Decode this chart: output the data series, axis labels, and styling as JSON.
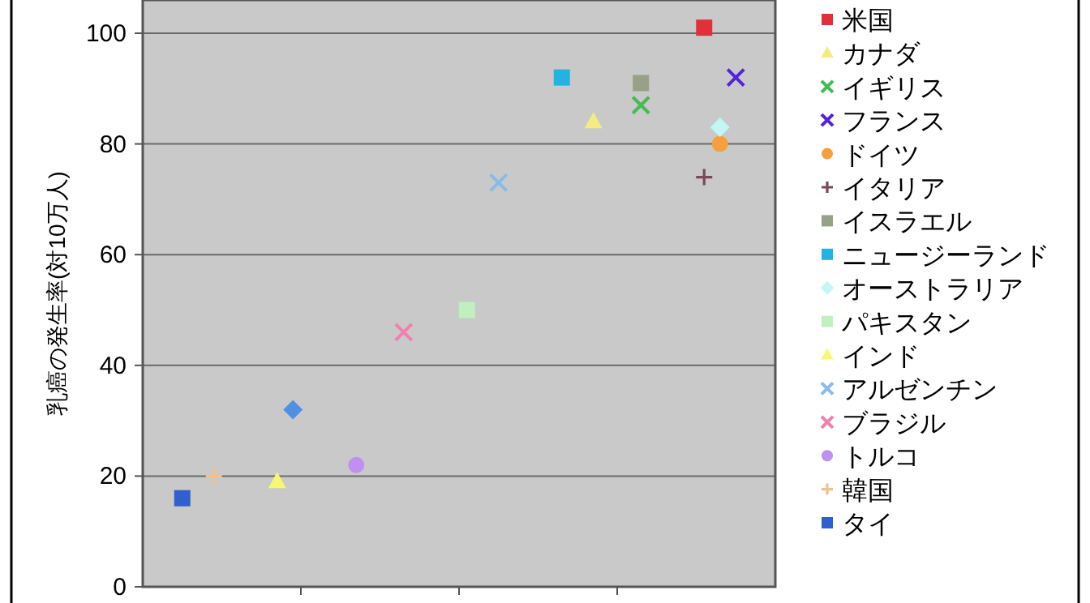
{
  "chart_data": {
    "type": "scatter",
    "ylabel": "乳癌の発生率(対10万人)",
    "ylim": [
      0,
      106
    ],
    "yticks": [
      0,
      20,
      40,
      60,
      80,
      100
    ],
    "grid": "y",
    "legend": "right",
    "tick_labels": "y",
    "categories": [
      null,
      null,
      null,
      null,
      null,
      null,
      null,
      null,
      null,
      null,
      null,
      null,
      null,
      null,
      null,
      null,
      null,
      null,
      null,
      null,
      null,
      null,
      null,
      null,
      null,
      null,
      null,
      null,
      null,
      null,
      null,
      null,
      null,
      null,
      null,
      null,
      null,
      null,
      null,
      null
    ],
    "series": [
      {
        "name": "米国",
        "color": "#e0303a",
        "marker": "square",
        "values": [
          null,
          null,
          null,
          null,
          null,
          null,
          null,
          null,
          null,
          null,
          null,
          null,
          null,
          null,
          null,
          null,
          null,
          null,
          null,
          null,
          null,
          null,
          null,
          null,
          null,
          null,
          null,
          null,
          null,
          null,
          null,
          null,
          null,
          null,
          null,
          101,
          null,
          null,
          null,
          null
        ]
      },
      {
        "name": "カナダ",
        "color": "#f4ec80",
        "marker": "triangle",
        "values": [
          null,
          null,
          null,
          null,
          null,
          null,
          null,
          null,
          null,
          null,
          null,
          null,
          null,
          null,
          null,
          null,
          null,
          null,
          null,
          null,
          null,
          null,
          null,
          null,
          null,
          null,
          null,
          null,
          84,
          null,
          null,
          null,
          null,
          null,
          null,
          null,
          null,
          null,
          null,
          null
        ]
      },
      {
        "name": "イギリス",
        "color": "#44bb55",
        "marker": "cross",
        "values": [
          null,
          null,
          null,
          null,
          null,
          null,
          null,
          null,
          null,
          null,
          null,
          null,
          null,
          null,
          null,
          null,
          null,
          null,
          null,
          null,
          null,
          null,
          null,
          null,
          null,
          null,
          null,
          null,
          null,
          null,
          null,
          87,
          null,
          null,
          null,
          null,
          null,
          null,
          null,
          null
        ]
      },
      {
        "name": "フランス",
        "color": "#5522dd",
        "marker": "cross",
        "values": [
          null,
          null,
          null,
          null,
          null,
          null,
          null,
          null,
          null,
          null,
          null,
          null,
          null,
          null,
          null,
          null,
          null,
          null,
          null,
          null,
          null,
          null,
          null,
          null,
          null,
          null,
          null,
          null,
          null,
          null,
          null,
          null,
          null,
          null,
          null,
          null,
          null,
          92,
          null,
          null
        ]
      },
      {
        "name": "ドイツ",
        "color": "#f5a040",
        "marker": "circle",
        "values": [
          null,
          null,
          null,
          null,
          null,
          null,
          null,
          null,
          null,
          null,
          null,
          null,
          null,
          null,
          null,
          null,
          null,
          null,
          null,
          null,
          null,
          null,
          null,
          null,
          null,
          null,
          null,
          null,
          null,
          null,
          null,
          null,
          null,
          null,
          null,
          null,
          80,
          null,
          null,
          null
        ]
      },
      {
        "name": "イタリア",
        "color": "#7a4a5a",
        "marker": "plus",
        "values": [
          null,
          null,
          null,
          null,
          null,
          null,
          null,
          null,
          null,
          null,
          null,
          null,
          null,
          null,
          null,
          null,
          null,
          null,
          null,
          null,
          null,
          null,
          null,
          null,
          null,
          null,
          null,
          null,
          null,
          null,
          null,
          null,
          null,
          null,
          null,
          74,
          null,
          null,
          null,
          null
        ]
      },
      {
        "name": "イスラエル",
        "color": "#98a088",
        "marker": "square",
        "values": [
          null,
          null,
          null,
          null,
          null,
          null,
          null,
          null,
          null,
          null,
          null,
          null,
          null,
          null,
          null,
          null,
          null,
          null,
          null,
          null,
          null,
          null,
          null,
          null,
          null,
          null,
          null,
          null,
          null,
          null,
          null,
          91,
          null,
          null,
          null,
          null,
          null,
          null,
          null,
          null
        ]
      },
      {
        "name": "ニュージーランド",
        "color": "#22b4e0",
        "marker": "square",
        "values": [
          null,
          null,
          null,
          null,
          null,
          null,
          null,
          null,
          null,
          null,
          null,
          null,
          null,
          null,
          null,
          null,
          null,
          null,
          null,
          null,
          null,
          null,
          null,
          null,
          null,
          null,
          92,
          null,
          null,
          null,
          null,
          null,
          null,
          null,
          null,
          null,
          null,
          null,
          null,
          null
        ]
      },
      {
        "name": "オーストラリア",
        "color": "#c4f6f6",
        "marker": "diamond",
        "values": [
          null,
          null,
          null,
          null,
          null,
          null,
          null,
          null,
          null,
          null,
          null,
          null,
          null,
          null,
          null,
          null,
          null,
          null,
          null,
          null,
          null,
          null,
          null,
          null,
          null,
          null,
          null,
          null,
          null,
          null,
          null,
          null,
          null,
          null,
          null,
          null,
          83,
          null,
          null,
          null
        ]
      },
      {
        "name": "パキスタン",
        "color": "#c0f0c0",
        "marker": "square",
        "values": [
          null,
          null,
          null,
          null,
          null,
          null,
          null,
          null,
          null,
          null,
          null,
          null,
          null,
          null,
          null,
          null,
          null,
          null,
          null,
          null,
          50,
          null,
          null,
          null,
          null,
          null,
          null,
          null,
          null,
          null,
          null,
          null,
          null,
          null,
          null,
          null,
          null,
          null,
          null,
          null
        ]
      },
      {
        "name": "インド",
        "color": "#f8f870",
        "marker": "triangle",
        "values": [
          null,
          null,
          null,
          null,
          null,
          null,
          null,
          null,
          19,
          null,
          null,
          null,
          null,
          null,
          null,
          null,
          null,
          null,
          null,
          null,
          null,
          null,
          null,
          null,
          null,
          null,
          null,
          null,
          null,
          null,
          null,
          null,
          null,
          null,
          null,
          null,
          null,
          null,
          null,
          null
        ]
      },
      {
        "name": "アルゼンチン",
        "color": "#88bce8",
        "marker": "cross",
        "values": [
          null,
          null,
          null,
          null,
          null,
          null,
          null,
          null,
          null,
          null,
          null,
          null,
          null,
          null,
          null,
          null,
          null,
          null,
          null,
          null,
          null,
          null,
          73,
          null,
          null,
          null,
          null,
          null,
          null,
          null,
          null,
          null,
          null,
          null,
          null,
          null,
          null,
          null,
          null,
          null
        ]
      },
      {
        "name": "ブラジル",
        "color": "#f080b0",
        "marker": "cross",
        "values": [
          null,
          null,
          null,
          null,
          null,
          null,
          null,
          null,
          null,
          null,
          null,
          null,
          null,
          null,
          null,
          null,
          46,
          null,
          null,
          null,
          null,
          null,
          null,
          null,
          null,
          null,
          null,
          null,
          null,
          null,
          null,
          null,
          null,
          null,
          null,
          null,
          null,
          null,
          null,
          null
        ]
      },
      {
        "name": "トルコ",
        "color": "#c090f0",
        "marker": "circle",
        "values": [
          null,
          null,
          null,
          null,
          null,
          null,
          null,
          null,
          null,
          null,
          null,
          null,
          null,
          22,
          null,
          null,
          null,
          null,
          null,
          null,
          null,
          null,
          null,
          null,
          null,
          null,
          null,
          null,
          null,
          null,
          null,
          null,
          null,
          null,
          null,
          null,
          null,
          null,
          null,
          null
        ]
      },
      {
        "name": "韓国",
        "color": "#f0c090",
        "marker": "plus",
        "values": [
          null,
          null,
          null,
          null,
          20,
          null,
          null,
          null,
          null,
          null,
          null,
          null,
          null,
          null,
          null,
          null,
          null,
          null,
          null,
          null,
          null,
          null,
          null,
          null,
          null,
          null,
          null,
          null,
          null,
          null,
          null,
          null,
          null,
          null,
          null,
          null,
          null,
          null,
          null,
          null
        ]
      },
      {
        "name": "タイ",
        "color": "#3060d0",
        "marker": "square",
        "values": [
          null,
          null,
          16,
          null,
          null,
          null,
          null,
          null,
          null,
          null,
          null,
          null,
          null,
          null,
          null,
          null,
          null,
          null,
          null,
          null,
          null,
          null,
          null,
          null,
          null,
          null,
          null,
          null,
          null,
          null,
          null,
          null,
          null,
          null,
          null,
          null,
          null,
          null,
          null,
          null
        ]
      },
      {
        "color": "#5090e0",
        "marker": "diamond",
        "values": [
          null,
          null,
          null,
          null,
          null,
          null,
          null,
          null,
          null,
          32,
          null,
          null,
          null,
          null,
          null,
          null,
          null,
          null,
          null,
          null,
          null,
          null,
          null,
          null,
          null,
          null,
          null,
          null,
          null,
          null,
          null,
          null,
          null,
          null,
          null,
          null,
          null,
          null,
          null,
          null
        ]
      }
    ]
  }
}
